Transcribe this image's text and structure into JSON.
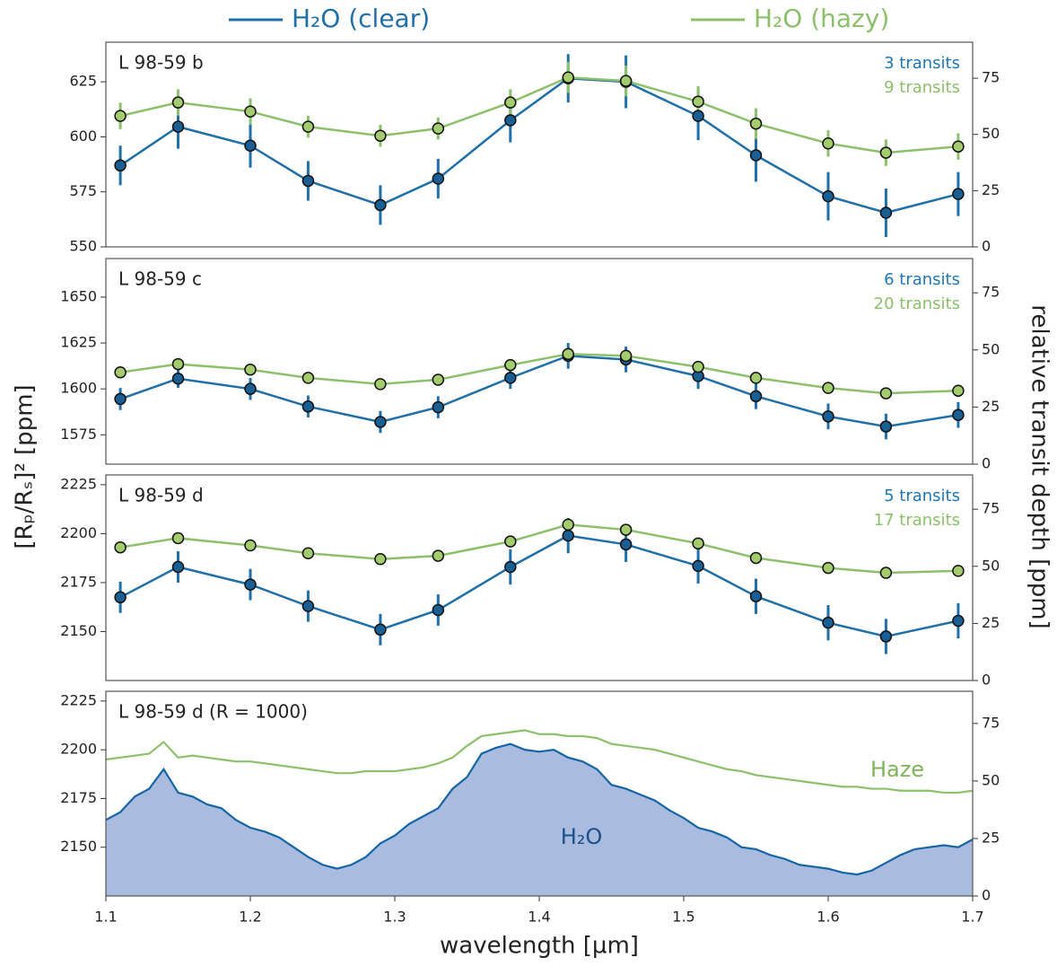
{
  "legend": {
    "series": [
      {
        "name": "H₂O (clear)",
        "color": "#1f6fa8"
      },
      {
        "name": "H₂O (hazy)",
        "color": "#8cc06a"
      }
    ]
  },
  "ylabel": "[Rₚ/Rₛ]² [ppm]",
  "y2label": "relative transit depth [ppm]",
  "chart_data": [
    {
      "type": "errorbar",
      "title": "L 98-59 b",
      "annotations": [
        {
          "text": "3 transits",
          "color": "#1f77b4"
        },
        {
          "text": "9 transits",
          "color": "#8cc06a"
        }
      ],
      "x": [
        1.11,
        1.15,
        1.2,
        1.24,
        1.29,
        1.33,
        1.38,
        1.42,
        1.46,
        1.51,
        1.55,
        1.6,
        1.64,
        1.69
      ],
      "xlim": [
        1.1,
        1.7
      ],
      "ylim": [
        550,
        643
      ],
      "yticks": [
        550,
        575,
        600,
        625
      ],
      "y2lim": [
        0,
        91
      ],
      "y2ticks": [
        0,
        25,
        50,
        75
      ],
      "series": [
        {
          "color": "#1f6fa8",
          "marker": "#1a5f94",
          "values": [
            587,
            604.6,
            596,
            580,
            569,
            581,
            607.5,
            626.6,
            625,
            609.5,
            591.6,
            573,
            565.5,
            574
          ],
          "errors": [
            9,
            10,
            10,
            9,
            9,
            9,
            10,
            11,
            12,
            11,
            12,
            11,
            11,
            10
          ]
        },
        {
          "color": "#8cc06a",
          "marker": "#a4cc6e",
          "values": [
            609.5,
            615.6,
            611.5,
            604.6,
            600.5,
            603.8,
            615.6,
            627,
            625.4,
            616,
            606,
            597,
            592.8,
            595.6
          ],
          "errors": [
            6,
            6,
            6,
            5,
            5,
            5,
            6,
            7,
            7,
            7,
            7,
            6,
            6,
            6
          ]
        }
      ]
    },
    {
      "type": "errorbar",
      "title": "L 98-59 c",
      "annotations": [
        {
          "text": "6 transits",
          "color": "#1f77b4"
        },
        {
          "text": "20 transits",
          "color": "#8cc06a"
        }
      ],
      "x": [
        1.11,
        1.15,
        1.2,
        1.24,
        1.29,
        1.33,
        1.38,
        1.42,
        1.46,
        1.51,
        1.55,
        1.6,
        1.64,
        1.69
      ],
      "xlim": [
        1.1,
        1.7
      ],
      "ylim": [
        1559,
        1671
      ],
      "yticks": [
        1575,
        1600,
        1625,
        1650
      ],
      "y2lim": [
        0,
        90
      ],
      "y2ticks": [
        0,
        25,
        50,
        75
      ],
      "series": [
        {
          "color": "#1f6fa8",
          "marker": "#1a5f94",
          "values": [
            1594.5,
            1605.6,
            1600,
            1590.4,
            1582,
            1590,
            1606,
            1618,
            1616,
            1607,
            1596,
            1585,
            1579.5,
            1585.8
          ],
          "errors": [
            6,
            5,
            6,
            6,
            6,
            6,
            6,
            7,
            7,
            7,
            7,
            7,
            7,
            7
          ]
        },
        {
          "color": "#8cc06a",
          "marker": "#a4cc6e",
          "values": [
            1609,
            1613.5,
            1610.5,
            1606,
            1602.6,
            1605,
            1613,
            1619,
            1618,
            1612,
            1606,
            1600.5,
            1597.6,
            1599
          ],
          "errors": [
            3,
            3,
            3,
            3,
            3,
            3,
            3,
            3,
            3,
            3,
            3,
            3,
            3,
            3
          ]
        }
      ]
    },
    {
      "type": "errorbar",
      "title": "L 98-59 d",
      "annotations": [
        {
          "text": "5 transits",
          "color": "#1f77b4"
        },
        {
          "text": "17 transits",
          "color": "#8cc06a"
        }
      ],
      "x": [
        1.11,
        1.15,
        1.2,
        1.24,
        1.29,
        1.33,
        1.38,
        1.42,
        1.46,
        1.51,
        1.55,
        1.6,
        1.64,
        1.69
      ],
      "xlim": [
        1.1,
        1.7
      ],
      "ylim": [
        2125,
        2230
      ],
      "yticks": [
        2150,
        2175,
        2200,
        2225
      ],
      "y2lim": [
        0,
        90
      ],
      "y2ticks": [
        0,
        25,
        50,
        75
      ],
      "series": [
        {
          "color": "#1f6fa8",
          "marker": "#1a5f94",
          "values": [
            2167.5,
            2183,
            2174,
            2163,
            2151,
            2161,
            2183,
            2199,
            2194.5,
            2183.5,
            2168,
            2154.5,
            2147.5,
            2155.5
          ],
          "errors": [
            8,
            8,
            8,
            8,
            8,
            8,
            9,
            9,
            9,
            9,
            9,
            9,
            9,
            9
          ]
        },
        {
          "color": "#8cc06a",
          "marker": "#a4cc6e",
          "values": [
            2193,
            2197.7,
            2194,
            2190,
            2187,
            2188.7,
            2196,
            2204.6,
            2202,
            2195,
            2187.6,
            2182.5,
            2180,
            2181
          ],
          "errors": [
            2,
            2,
            2,
            2,
            2,
            2,
            2,
            2,
            2,
            2,
            2,
            2,
            2,
            2
          ]
        }
      ]
    },
    {
      "type": "line",
      "title": "L 98-59 d (R = 1000)",
      "xlabel": "wavelength [µm]",
      "annotations": [
        {
          "text": "Haze",
          "color": "#7fb35a"
        },
        {
          "text": "H₂O",
          "color": "#1a4f8a"
        }
      ],
      "x": [
        1.1,
        1.11,
        1.12,
        1.13,
        1.14,
        1.15,
        1.16,
        1.17,
        1.18,
        1.19,
        1.2,
        1.21,
        1.22,
        1.23,
        1.24,
        1.25,
        1.26,
        1.27,
        1.28,
        1.29,
        1.3,
        1.31,
        1.32,
        1.33,
        1.34,
        1.35,
        1.36,
        1.37,
        1.38,
        1.39,
        1.4,
        1.41,
        1.42,
        1.43,
        1.44,
        1.45,
        1.46,
        1.47,
        1.48,
        1.49,
        1.5,
        1.51,
        1.52,
        1.53,
        1.54,
        1.55,
        1.56,
        1.57,
        1.58,
        1.59,
        1.6,
        1.61,
        1.62,
        1.63,
        1.64,
        1.65,
        1.66,
        1.67,
        1.68,
        1.69,
        1.7
      ],
      "xlim": [
        1.1,
        1.7
      ],
      "xticks": [
        1.1,
        1.2,
        1.3,
        1.4,
        1.5,
        1.6,
        1.7
      ],
      "ylim": [
        2125,
        2230
      ],
      "yticks": [
        2150,
        2175,
        2200,
        2225
      ],
      "y2lim": [
        0,
        89
      ],
      "y2ticks": [
        0,
        25,
        50,
        75
      ],
      "series": [
        {
          "color": "#1565a5",
          "fill": "#a9bcdf",
          "values": [
            2164,
            2168,
            2176,
            2180,
            2190,
            2178,
            2176,
            2172,
            2170,
            2164,
            2160,
            2158,
            2155,
            2150,
            2145,
            2141,
            2139,
            2141,
            2145,
            2152,
            2156,
            2162,
            2166,
            2170,
            2180,
            2186,
            2198,
            2201,
            2203,
            2200,
            2199,
            2200,
            2196,
            2194,
            2190,
            2182,
            2180,
            2177,
            2174,
            2169,
            2165,
            2160,
            2158,
            2155,
            2150,
            2149,
            2146,
            2144,
            2141,
            2140,
            2139,
            2137,
            2136,
            2138,
            2142,
            2146,
            2149,
            2150,
            2151,
            2150,
            2154
          ]
        },
        {
          "color": "#8cc06a",
          "values": [
            2195,
            2196,
            2197,
            2198,
            2204,
            2196,
            2197,
            2196,
            2195,
            2194,
            2194,
            2193,
            2192,
            2191,
            2190,
            2189,
            2188,
            2188,
            2189,
            2189,
            2189,
            2190,
            2191,
            2193,
            2196,
            2202,
            2207,
            2208,
            2209,
            2210,
            2208,
            2208,
            2207,
            2207,
            2206,
            2203,
            2202,
            2201,
            2200,
            2198,
            2196,
            2194,
            2192,
            2190,
            2189,
            2187,
            2186,
            2185,
            2184,
            2183,
            2182,
            2181,
            2181,
            2180,
            2180,
            2179,
            2179,
            2179,
            2178,
            2178,
            2179
          ]
        }
      ]
    }
  ]
}
